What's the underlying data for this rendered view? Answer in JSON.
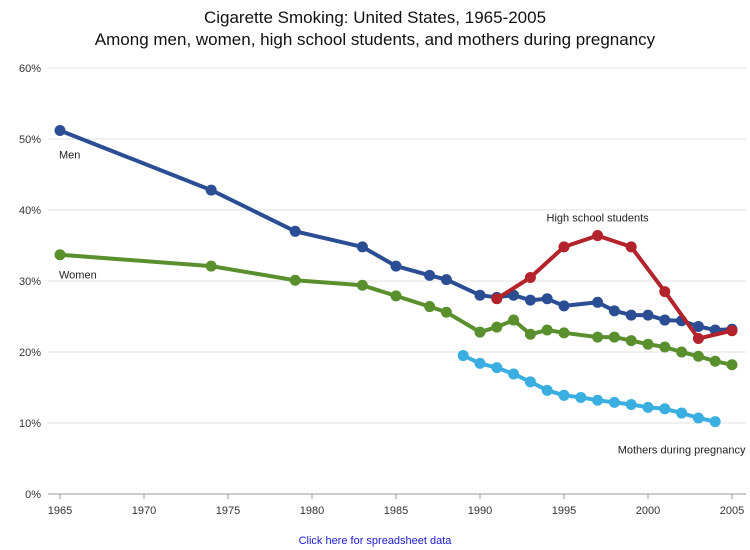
{
  "chart_data": {
    "type": "line",
    "title": "Cigarette Smoking: United States, 1965-2005",
    "subtitle": "Among men, women, high school students, and mothers during pregnancy",
    "xlabel": "",
    "ylabel": "",
    "xlim": [
      1965,
      2005
    ],
    "ylim": [
      0,
      60
    ],
    "x_ticks": [
      "1965",
      "1970",
      "1975",
      "1980",
      "1985",
      "1990",
      "1995",
      "2000",
      "2005"
    ],
    "y_ticks": [
      "0%",
      "10%",
      "20%",
      "30%",
      "40%",
      "50%",
      "60%"
    ],
    "grid": "horizontal",
    "series": [
      {
        "name": "Men",
        "color": "#2b4d93",
        "x": [
          1965,
          1974,
          1979,
          1983,
          1985,
          1987,
          1988,
          1990,
          1991,
          1992,
          1993,
          1994,
          1995,
          1997,
          1998,
          1999,
          2000,
          2001,
          2002,
          2003,
          2004,
          2005
        ],
        "y": [
          51.2,
          42.8,
          37.0,
          34.8,
          32.1,
          30.8,
          30.2,
          28.0,
          27.7,
          28.0,
          27.3,
          27.5,
          26.5,
          27.0,
          25.8,
          25.2,
          25.2,
          24.5,
          24.4,
          23.6,
          23.1,
          23.2
        ]
      },
      {
        "name": "Women",
        "color": "#5a8f2e",
        "x": [
          1965,
          1974,
          1979,
          1983,
          1985,
          1987,
          1988,
          1990,
          1991,
          1992,
          1993,
          1994,
          1995,
          1997,
          1998,
          1999,
          2000,
          2001,
          2002,
          2003,
          2004,
          2005
        ],
        "y": [
          33.7,
          32.1,
          30.1,
          29.4,
          27.9,
          26.4,
          25.6,
          22.8,
          23.5,
          24.5,
          22.5,
          23.1,
          22.7,
          22.1,
          22.1,
          21.6,
          21.1,
          20.7,
          20.0,
          19.4,
          18.7,
          18.2
        ]
      },
      {
        "name": "High school students",
        "color": "#b3232b",
        "x": [
          1991,
          1993,
          1995,
          1997,
          1999,
          2001,
          2003,
          2005
        ],
        "y": [
          27.5,
          30.5,
          34.8,
          36.4,
          34.8,
          28.5,
          21.9,
          23.0
        ]
      },
      {
        "name": "Mothers during pregnancy",
        "color": "#3aaee0",
        "x": [
          1989,
          1990,
          1991,
          1992,
          1993,
          1994,
          1995,
          1996,
          1997,
          1998,
          1999,
          2000,
          2001,
          2002,
          2003,
          2004
        ],
        "y": [
          19.5,
          18.4,
          17.8,
          16.9,
          15.8,
          14.6,
          13.9,
          13.6,
          13.2,
          12.9,
          12.6,
          12.2,
          12.0,
          11.4,
          10.7,
          10.2
        ]
      }
    ]
  },
  "footer": {
    "link_text": "Click here for spreadsheet data"
  }
}
